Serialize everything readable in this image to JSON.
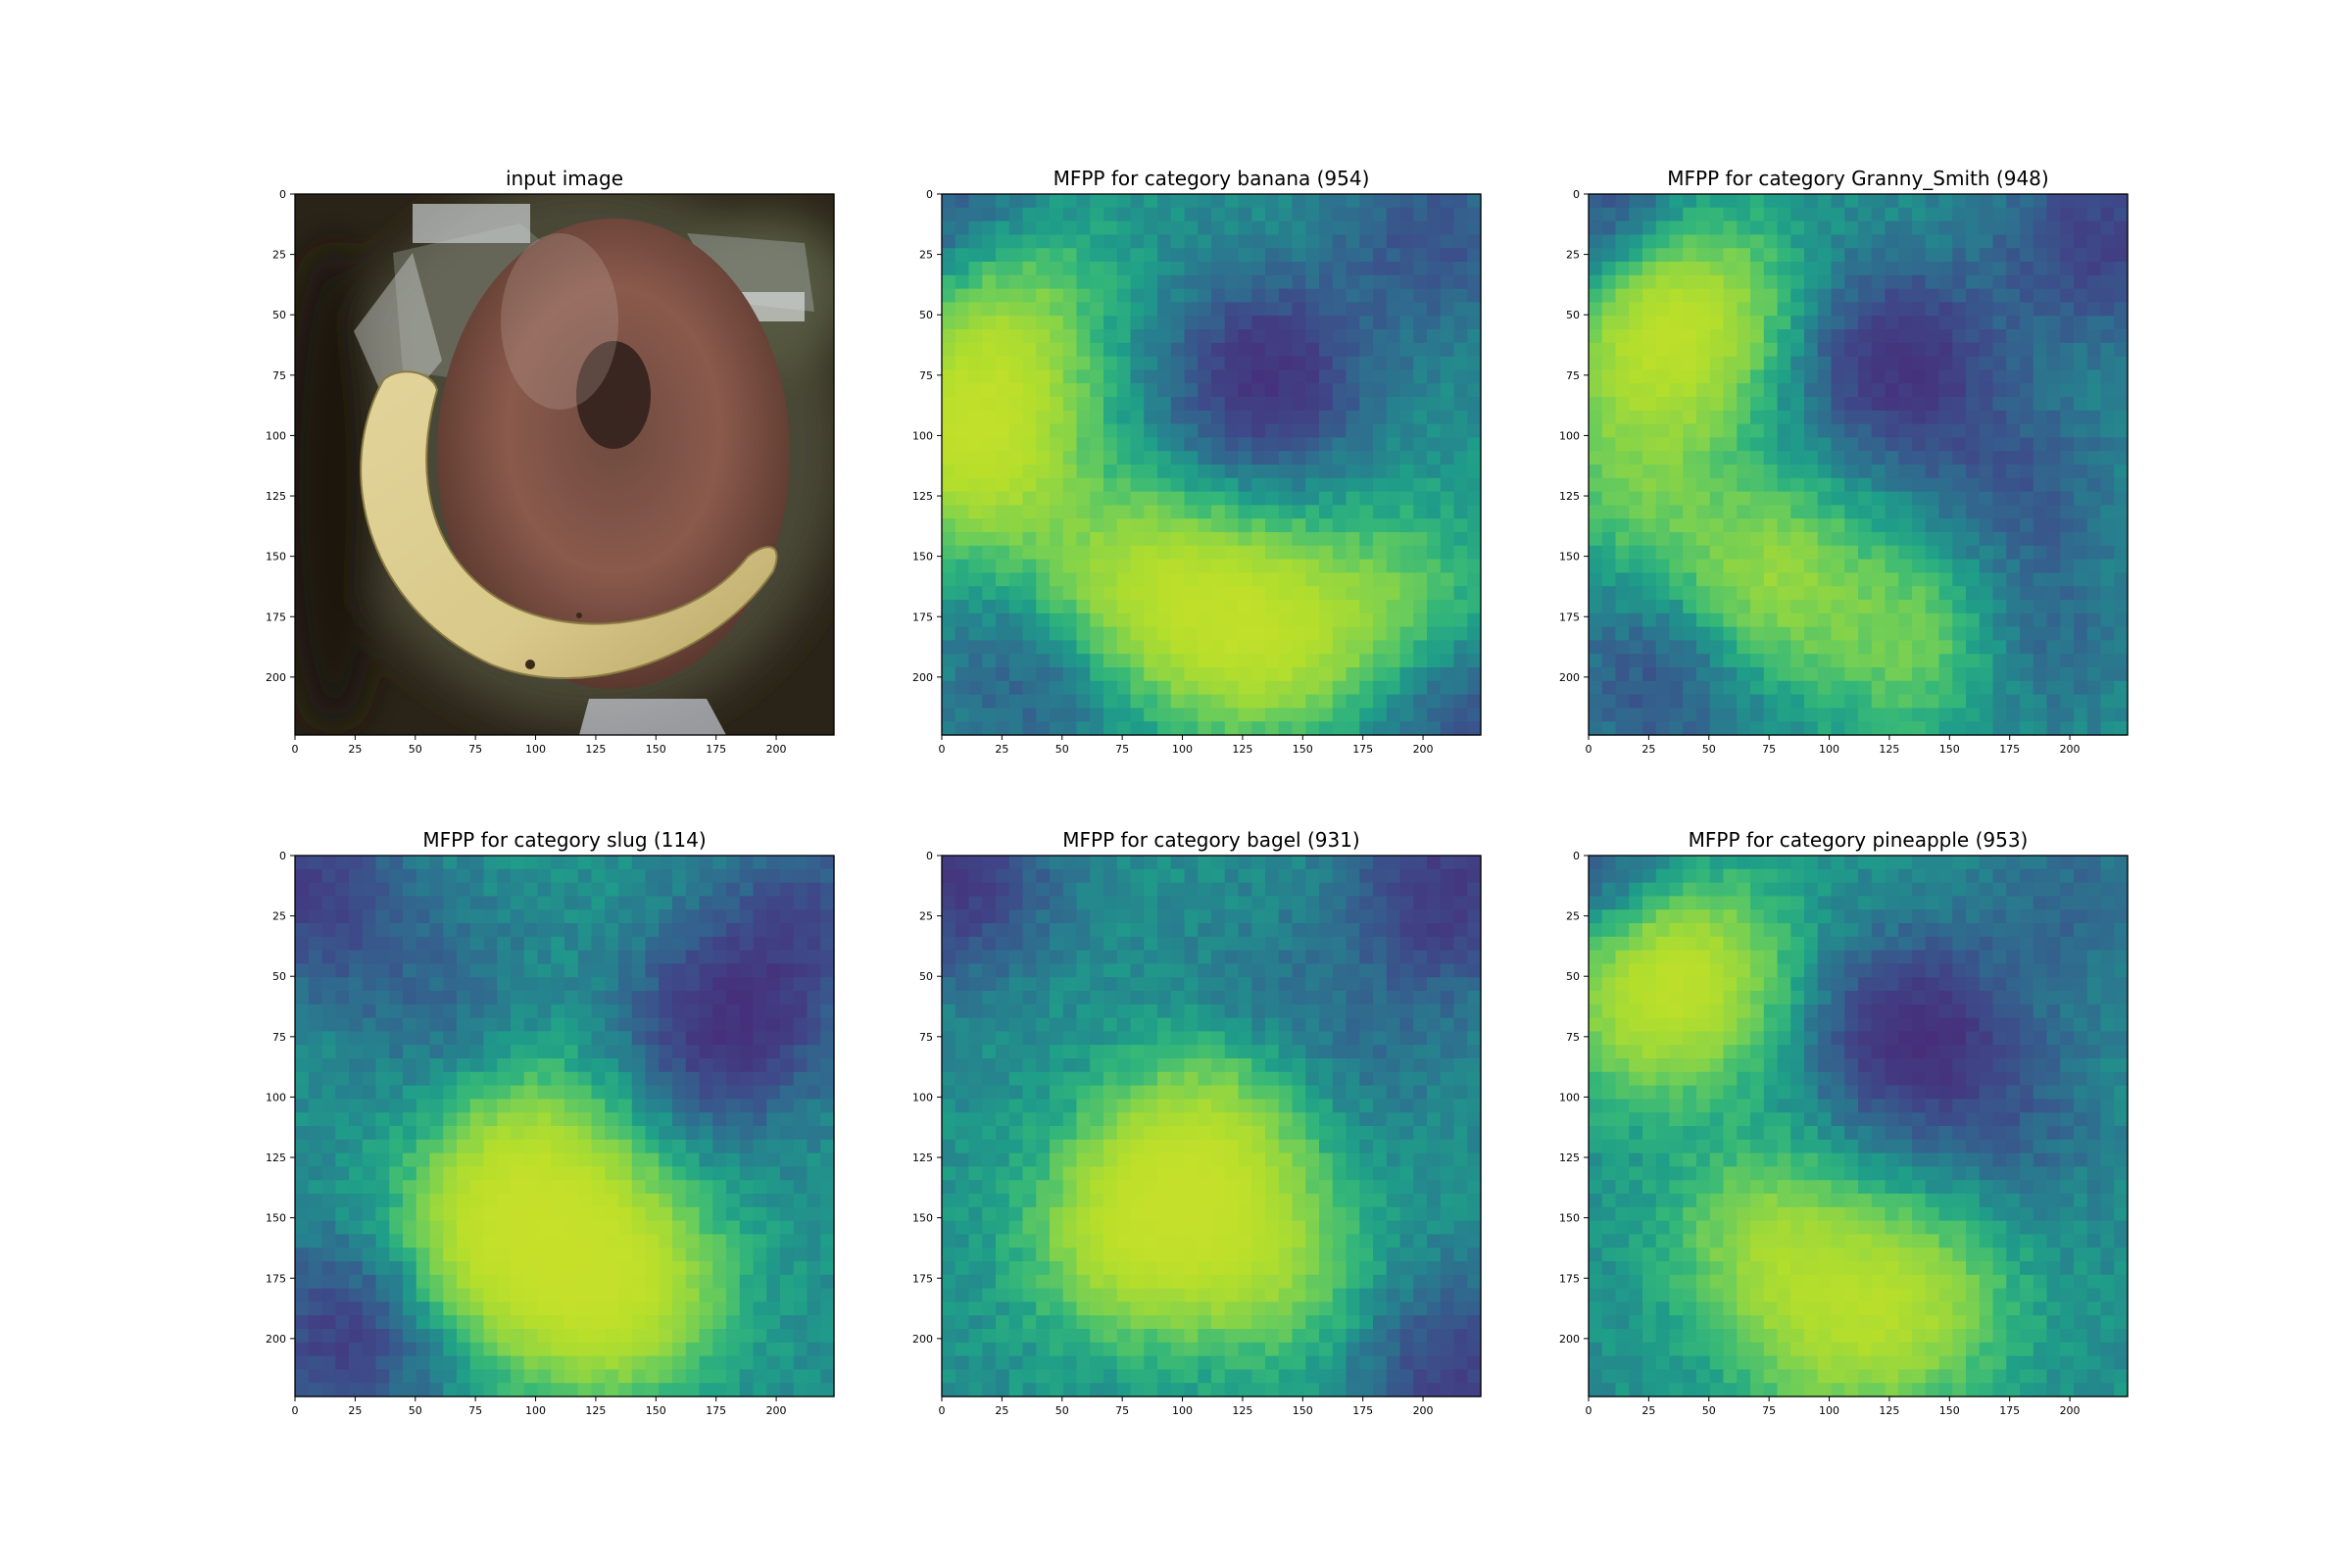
{
  "chart_data": [
    {
      "type": "image",
      "title": "input image",
      "x_ticks": [
        0,
        25,
        50,
        75,
        100,
        125,
        150,
        175,
        200
      ],
      "y_ticks": [
        0,
        25,
        50,
        75,
        100,
        125,
        150,
        175,
        200
      ],
      "xlim": [
        0,
        224
      ],
      "ylim": [
        224,
        0
      ],
      "content": "photo: banana and glazed donut in plastic bag on dark background"
    },
    {
      "type": "heatmap",
      "colormap": "viridis",
      "title": "MFPP for category banana (954)",
      "x_ticks": [
        0,
        25,
        50,
        75,
        100,
        125,
        150,
        175,
        200
      ],
      "y_ticks": [
        0,
        25,
        50,
        75,
        100,
        125,
        150,
        175,
        200
      ],
      "xlim": [
        0,
        224
      ],
      "ylim": [
        224,
        0
      ],
      "hotspots": [
        {
          "x": 18,
          "y": 85,
          "value": 0.9
        },
        {
          "x": 12,
          "y": 112,
          "value": 0.85
        },
        {
          "x": 75,
          "y": 160,
          "value": 0.8
        },
        {
          "x": 138,
          "y": 183,
          "value": 0.95
        },
        {
          "x": 110,
          "y": 175,
          "value": 0.7
        },
        {
          "x": 28,
          "y": 40,
          "value": 0.65
        },
        {
          "x": 190,
          "y": 170,
          "value": 0.55
        },
        {
          "x": 135,
          "y": 75,
          "value": -0.9
        },
        {
          "x": 205,
          "y": 20,
          "value": -0.5
        },
        {
          "x": 5,
          "y": 10,
          "value": -0.6
        },
        {
          "x": 40,
          "y": 200,
          "value": -0.4
        },
        {
          "x": 215,
          "y": 215,
          "value": -0.5
        }
      ]
    },
    {
      "type": "heatmap",
      "colormap": "viridis",
      "title": "MFPP for category Granny_Smith (948)",
      "x_ticks": [
        0,
        25,
        50,
        75,
        100,
        125,
        150,
        175,
        200
      ],
      "y_ticks": [
        0,
        25,
        50,
        75,
        100,
        125,
        150,
        175,
        200
      ],
      "xlim": [
        0,
        224
      ],
      "ylim": [
        224,
        0
      ],
      "hotspots": [
        {
          "x": 25,
          "y": 65,
          "value": 0.85
        },
        {
          "x": 45,
          "y": 45,
          "value": 0.8
        },
        {
          "x": 75,
          "y": 160,
          "value": 0.85
        },
        {
          "x": 140,
          "y": 185,
          "value": 0.7
        },
        {
          "x": 20,
          "y": 120,
          "value": 0.5
        },
        {
          "x": 130,
          "y": 70,
          "value": -0.9
        },
        {
          "x": 210,
          "y": 20,
          "value": -0.7
        },
        {
          "x": 5,
          "y": 10,
          "value": -0.6
        },
        {
          "x": 30,
          "y": 200,
          "value": -0.5
        },
        {
          "x": 180,
          "y": 185,
          "value": -0.4
        },
        {
          "x": 180,
          "y": 120,
          "value": -0.4
        }
      ]
    },
    {
      "type": "heatmap",
      "colormap": "viridis",
      "title": "MFPP for category slug (114)",
      "x_ticks": [
        0,
        25,
        50,
        75,
        100,
        125,
        150,
        175,
        200
      ],
      "y_ticks": [
        0,
        25,
        50,
        75,
        100,
        125,
        150,
        175,
        200
      ],
      "xlim": [
        0,
        224
      ],
      "ylim": [
        224,
        0
      ],
      "hotspots": [
        {
          "x": 140,
          "y": 175,
          "value": 0.95
        },
        {
          "x": 100,
          "y": 150,
          "value": 0.85
        },
        {
          "x": 80,
          "y": 160,
          "value": 0.7
        },
        {
          "x": 120,
          "y": 190,
          "value": 0.6
        },
        {
          "x": 100,
          "y": 120,
          "value": 0.55
        },
        {
          "x": 180,
          "y": 70,
          "value": -0.9
        },
        {
          "x": 5,
          "y": 15,
          "value": -0.7
        },
        {
          "x": 20,
          "y": 200,
          "value": -0.7
        },
        {
          "x": 215,
          "y": 25,
          "value": -0.5
        },
        {
          "x": 60,
          "y": 60,
          "value": -0.3
        }
      ]
    },
    {
      "type": "heatmap",
      "colormap": "viridis",
      "title": "MFPP for category bagel (931)",
      "x_ticks": [
        0,
        25,
        50,
        75,
        100,
        125,
        150,
        175,
        200
      ],
      "y_ticks": [
        0,
        25,
        50,
        75,
        100,
        125,
        150,
        175,
        200
      ],
      "xlim": [
        0,
        224
      ],
      "ylim": [
        224,
        0
      ],
      "hotspots": [
        {
          "x": 100,
          "y": 140,
          "value": 1.0
        },
        {
          "x": 75,
          "y": 160,
          "value": 0.85
        },
        {
          "x": 135,
          "y": 170,
          "value": 0.75
        },
        {
          "x": 115,
          "y": 110,
          "value": 0.6
        },
        {
          "x": 5,
          "y": 10,
          "value": -0.8
        },
        {
          "x": 210,
          "y": 15,
          "value": -0.8
        },
        {
          "x": 215,
          "y": 215,
          "value": -0.7
        },
        {
          "x": 130,
          "y": 60,
          "value": -0.2
        },
        {
          "x": 180,
          "y": 80,
          "value": -0.2
        }
      ]
    },
    {
      "type": "heatmap",
      "colormap": "viridis",
      "title": "MFPP for category pineapple (953)",
      "x_ticks": [
        0,
        25,
        50,
        75,
        100,
        125,
        150,
        175,
        200
      ],
      "y_ticks": [
        0,
        25,
        50,
        75,
        100,
        125,
        150,
        175,
        200
      ],
      "xlim": [
        0,
        224
      ],
      "ylim": [
        224,
        0
      ],
      "hotspots": [
        {
          "x": 25,
          "y": 60,
          "value": 0.9
        },
        {
          "x": 45,
          "y": 45,
          "value": 0.75
        },
        {
          "x": 75,
          "y": 160,
          "value": 0.8
        },
        {
          "x": 135,
          "y": 185,
          "value": 0.85
        },
        {
          "x": 100,
          "y": 200,
          "value": 0.6
        },
        {
          "x": 135,
          "y": 75,
          "value": -0.95
        },
        {
          "x": 5,
          "y": 10,
          "value": -0.5
        },
        {
          "x": 200,
          "y": 20,
          "value": -0.3
        },
        {
          "x": 180,
          "y": 110,
          "value": -0.3
        }
      ]
    }
  ]
}
